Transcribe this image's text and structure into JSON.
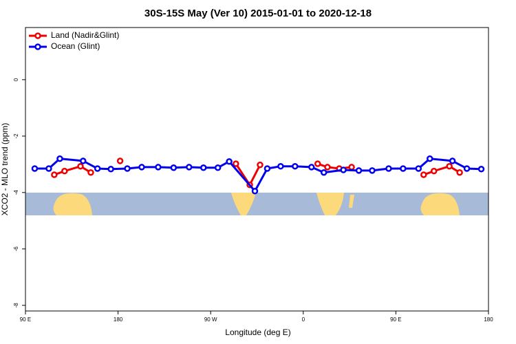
{
  "chart_data": {
    "type": "line",
    "title": "30S-15S May (Ver 10)   2015-01-01 to 2020-12-18",
    "xlabel": "Longitude (deg E)",
    "ylabel": "XCO2 - MLO trend (ppm)",
    "xlim": [
      90,
      540
    ],
    "ylim": [
      -8.2,
      1.85
    ],
    "xticks": [
      {
        "value": 90,
        "label": "90 E"
      },
      180,
      {
        "value": 270,
        "label": "90 W"
      },
      {
        "value": 360,
        "label": "0"
      },
      {
        "value": 450,
        "label": "90 E"
      },
      {
        "value": 540,
        "label": "180"
      }
    ],
    "yticks": [
      0,
      -2,
      -4,
      -6,
      -8
    ],
    "legend": "top-left",
    "series": [
      {
        "name": "Land (Nadir&Glint)",
        "color": "#ee0000",
        "x": [
          118,
          128,
          143.5,
          153.5,
          null,
          182,
          null,
          294.5,
          308,
          318,
          null,
          374,
          383.5,
          395,
          407,
          null,
          477,
          487,
          502,
          512
        ],
        "values": [
          -3.37,
          -3.24,
          -3.07,
          -3.29,
          null,
          -2.88,
          null,
          -2.98,
          -3.73,
          -3.02,
          null,
          -2.98,
          -3.1,
          -3.15,
          -3.1,
          null,
          -3.37,
          -3.24,
          -3.07,
          -3.29
        ]
      },
      {
        "name": "Ocean (Glint)",
        "color": "#0000ee",
        "x": [
          99,
          112.7,
          123.4,
          146,
          160,
          173,
          189,
          203,
          219,
          234,
          249,
          263,
          277,
          288,
          313,
          325,
          338,
          352,
          368,
          380,
          399,
          414,
          427,
          443,
          457,
          472,
          483,
          505,
          519,
          533
        ],
        "values": [
          -3.15,
          -3.15,
          -2.8,
          -2.88,
          -3.15,
          -3.17,
          -3.15,
          -3.1,
          -3.1,
          -3.12,
          -3.1,
          -3.12,
          -3.12,
          -2.9,
          -3.95,
          -3.15,
          -3.07,
          -3.07,
          -3.1,
          -3.29,
          -3.2,
          -3.22,
          -3.22,
          -3.15,
          -3.15,
          -3.15,
          -2.8,
          -2.88,
          -3.15,
          -3.17
        ]
      }
    ]
  }
}
